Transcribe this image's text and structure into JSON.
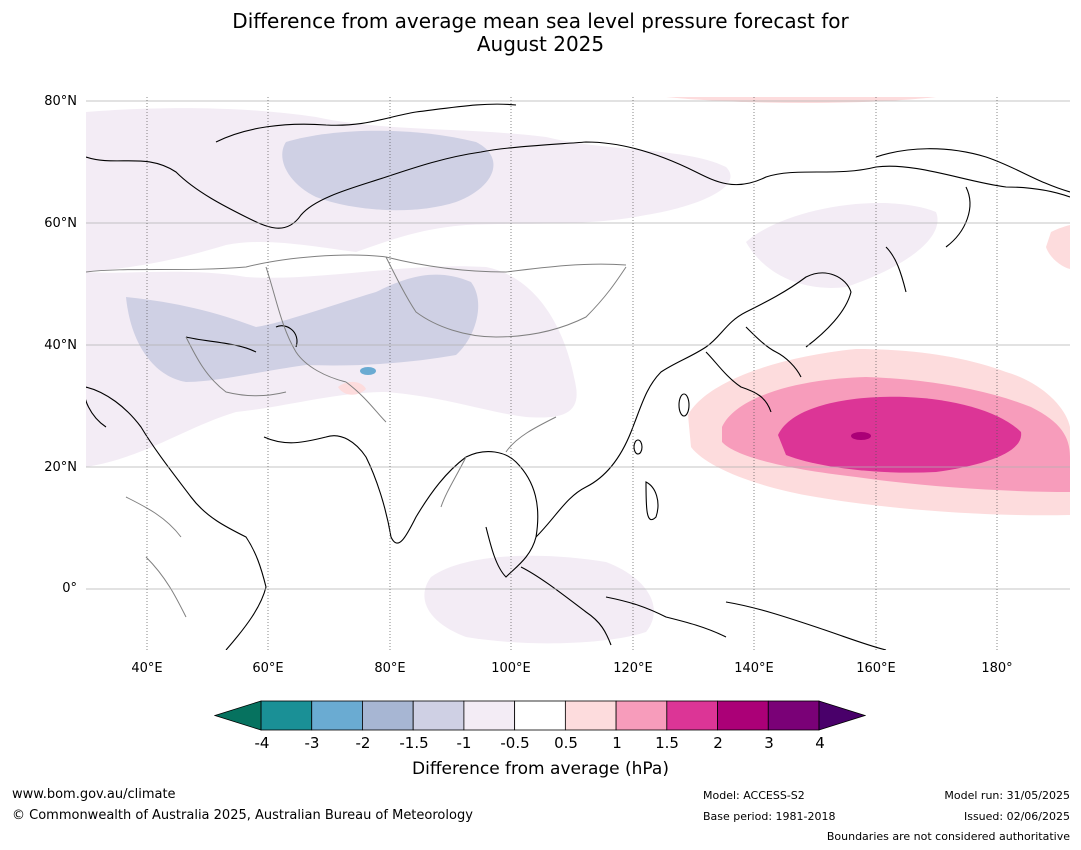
{
  "title_line1": "Difference from average mean sea level pressure forecast for",
  "title_line2": "August 2025",
  "map": {
    "lat_labels": [
      "80°N",
      "60°N",
      "40°N",
      "20°N",
      "0°"
    ],
    "lon_labels": [
      "40°E",
      "60°E",
      "80°E",
      "100°E",
      "120°E",
      "140°E",
      "160°E",
      "180°"
    ],
    "extent": {
      "lon_min": 30,
      "lon_max": 192,
      "lat_min": -10,
      "lat_max": 81
    }
  },
  "colorbar": {
    "ticks": [
      "-4",
      "-3",
      "-2",
      "-1.5",
      "-1",
      "-0.5",
      "0.5",
      "1",
      "1.5",
      "2",
      "3",
      "4"
    ],
    "colors": [
      "#1a9096",
      "#6aabd2",
      "#a7b6d3",
      "#cfd0e4",
      "#f3ecf5",
      "#ffffff",
      "#fddcdd",
      "#f79cbb",
      "#dc3596",
      "#ab0077",
      "#7a0177"
    ],
    "under_color": "#06725f",
    "over_color": "#49006a",
    "label": "Difference from average (hPa)"
  },
  "footer": {
    "website": "www.bom.gov.au/climate",
    "copyright": "© Commonwealth of Australia 2025, Australian Bureau of Meteorology",
    "model": "Model: ACCESS-S2",
    "base_period": "Base period: 1981-2018",
    "model_run": "Model run: 31/05/2025",
    "issued": "Issued: 02/06/2025",
    "disclaimer": "Boundaries are not considered authoritative"
  }
}
